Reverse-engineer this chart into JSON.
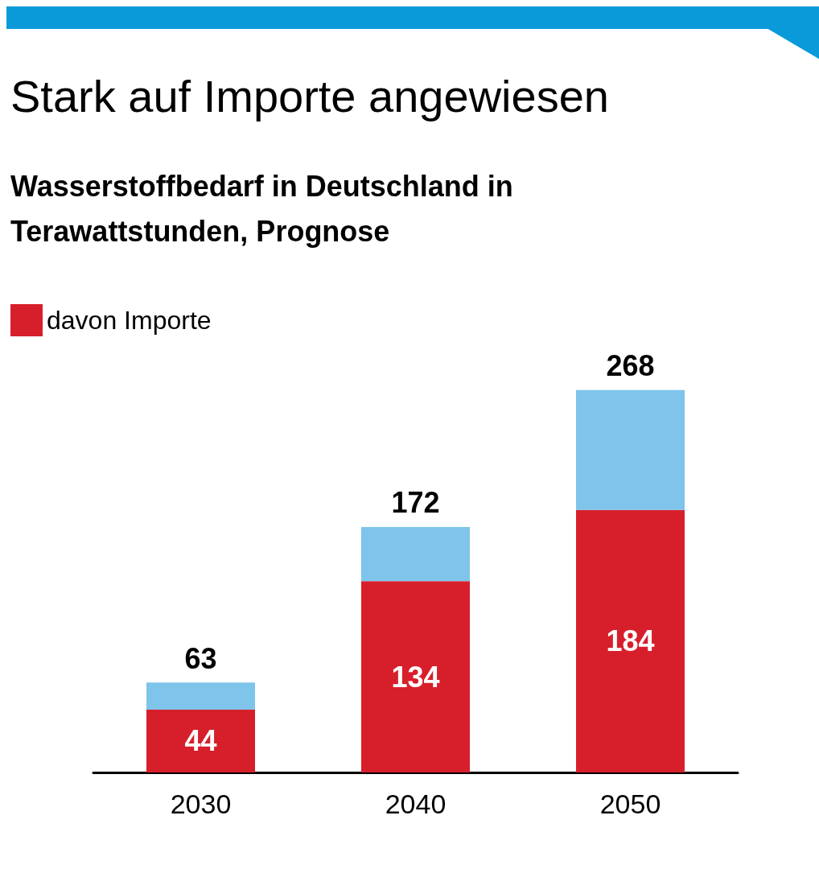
{
  "chart_data": {
    "type": "bar",
    "title": "Stark auf Importe angewiesen",
    "subtitle": "Wasserstoffbedarf in Deutschland in\nTerawattstunden, Prognose",
    "categories": [
      "2030",
      "2040",
      "2050"
    ],
    "stacked": true,
    "legend": "top left",
    "series": [
      {
        "name": "davon Importe",
        "color": "#d71f2b",
        "values": [
          44,
          134,
          184
        ],
        "value_labels": [
          "44",
          "134",
          "184"
        ]
      },
      {
        "color": "#7fc4ea",
        "values": [
          19,
          38,
          84
        ]
      }
    ],
    "totals": [
      "63",
      "172",
      "268"
    ]
  }
}
